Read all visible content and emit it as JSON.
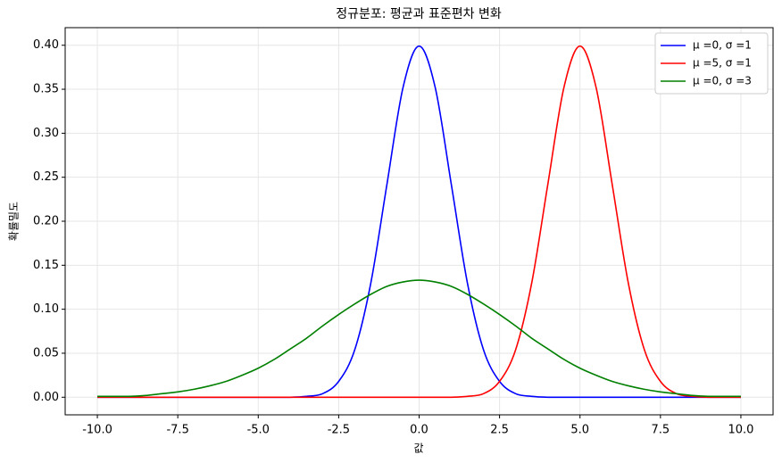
{
  "chart_data": {
    "type": "line",
    "title": "정규분포: 평균과 표준편차 변화",
    "xlabel": "값",
    "ylabel": "확률밀도",
    "x": [
      -10,
      -9.5,
      -9,
      -8.5,
      -8,
      -7.5,
      -7,
      -6.5,
      -6,
      -5.5,
      -5,
      -4.5,
      -4,
      -3.5,
      -3,
      -2.5,
      -2,
      -1.5,
      -1,
      -0.5,
      0,
      0.5,
      1,
      1.5,
      2,
      2.5,
      3,
      3.5,
      4,
      4.5,
      5,
      5.5,
      6,
      6.5,
      7,
      7.5,
      8,
      8.5,
      9,
      9.5,
      10
    ],
    "series": [
      {
        "name": "μ =0, σ =1",
        "color": "#0000ff",
        "values": [
          0,
          0,
          0,
          0,
          0,
          0,
          0,
          0,
          0,
          0,
          0,
          0,
          0,
          0.001,
          0.004,
          0.018,
          0.054,
          0.13,
          0.242,
          0.352,
          0.399,
          0.352,
          0.242,
          0.13,
          0.054,
          0.018,
          0.004,
          0.001,
          0,
          0,
          0,
          0,
          0,
          0,
          0,
          0,
          0,
          0,
          0,
          0,
          0
        ]
      },
      {
        "name": "μ =5, σ =1",
        "color": "#ff0000",
        "values": [
          0,
          0,
          0,
          0,
          0,
          0,
          0,
          0,
          0,
          0,
          0,
          0,
          0,
          0,
          0,
          0,
          0,
          0,
          0,
          0,
          0,
          0,
          0,
          0.001,
          0.004,
          0.018,
          0.054,
          0.13,
          0.242,
          0.352,
          0.399,
          0.352,
          0.242,
          0.13,
          0.054,
          0.018,
          0.004,
          0.001,
          0,
          0,
          0
        ]
      },
      {
        "name": "μ =0, σ =3",
        "color": "#008000",
        "values": [
          0.001,
          0.001,
          0.001,
          0.002,
          0.004,
          0.006,
          0.009,
          0.013,
          0.018,
          0.025,
          0.033,
          0.043,
          0.055,
          0.067,
          0.081,
          0.094,
          0.106,
          0.117,
          0.126,
          0.131,
          0.133,
          0.131,
          0.126,
          0.117,
          0.106,
          0.094,
          0.081,
          0.067,
          0.055,
          0.043,
          0.033,
          0.025,
          0.018,
          0.013,
          0.009,
          0.006,
          0.004,
          0.002,
          0.001,
          0.001,
          0.001
        ]
      }
    ],
    "xlim": [
      -11,
      11
    ],
    "xticks": [
      {
        "value": -10,
        "label": "-10.0"
      },
      {
        "value": -7.5,
        "label": "-7.5"
      },
      {
        "value": -5,
        "label": "-5.0"
      },
      {
        "value": -2.5,
        "label": "-2.5"
      },
      {
        "value": 0,
        "label": "0.0"
      },
      {
        "value": 2.5,
        "label": "2.5"
      },
      {
        "value": 5,
        "label": "5.0"
      },
      {
        "value": 7.5,
        "label": "7.5"
      },
      {
        "value": 10,
        "label": "10.0"
      }
    ],
    "ylim": [
      -0.02,
      0.42
    ],
    "yticks": [
      {
        "value": 0,
        "label": "0.00"
      },
      {
        "value": 0.05,
        "label": "0.05"
      },
      {
        "value": 0.1,
        "label": "0.10"
      },
      {
        "value": 0.15,
        "label": "0.15"
      },
      {
        "value": 0.2,
        "label": "0.20"
      },
      {
        "value": 0.25,
        "label": "0.25"
      },
      {
        "value": 0.3,
        "label": "0.30"
      },
      {
        "value": 0.35,
        "label": "0.35"
      },
      {
        "value": 0.4,
        "label": "0.40"
      }
    ],
    "grid": true,
    "legend": "upper right"
  }
}
